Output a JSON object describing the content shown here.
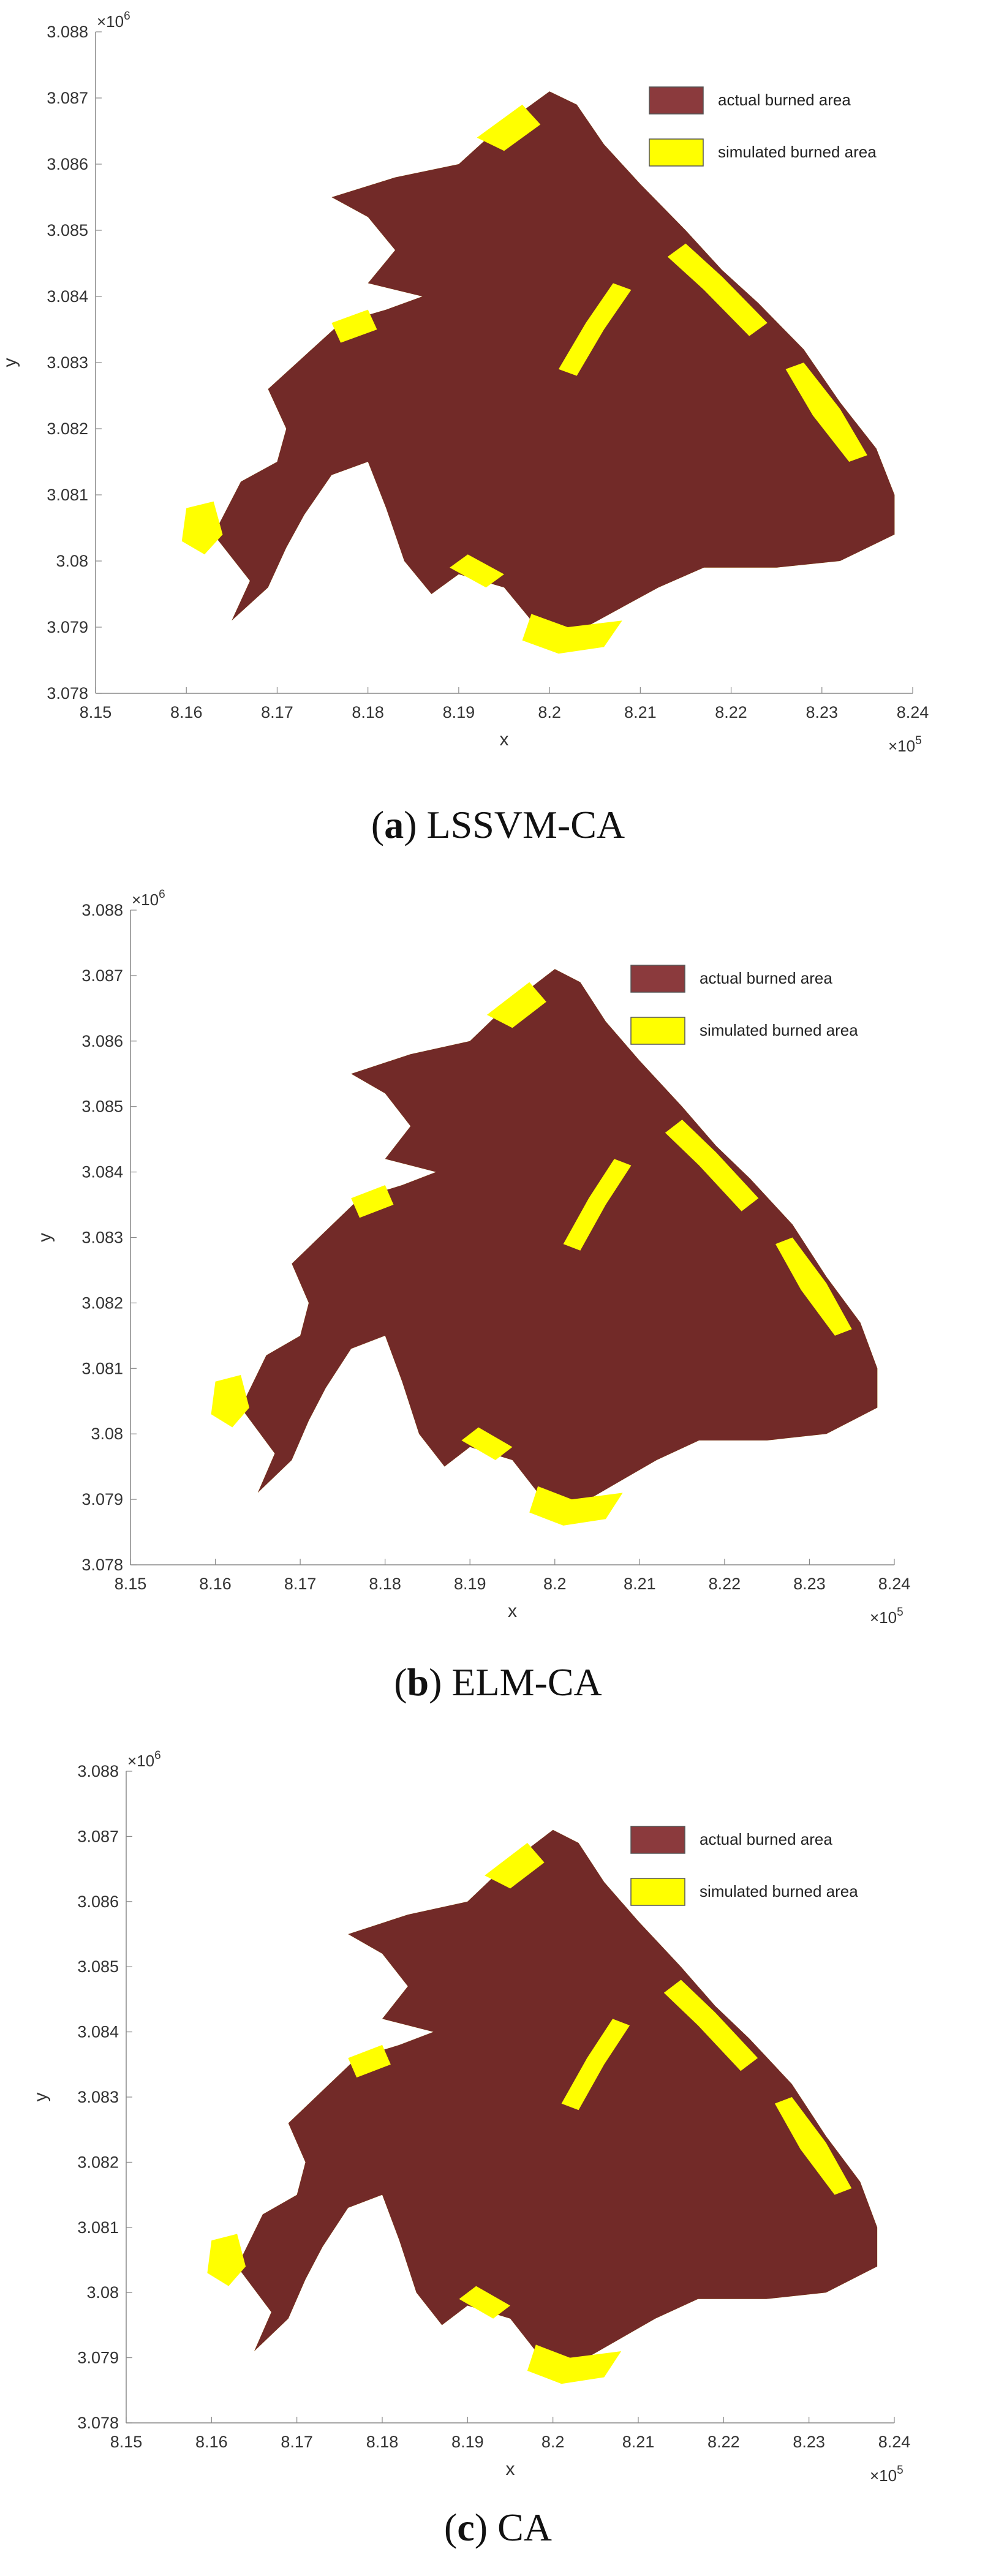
{
  "chart_data": [
    {
      "type": "map",
      "caption_letter": "a",
      "caption_text": "LSSVM-CA",
      "xlabel": "x",
      "ylabel": "y",
      "xlim": [
        815000,
        824000
      ],
      "ylim": [
        3078000,
        3088000
      ],
      "x_ticks": [
        "8.15",
        "8.16",
        "8.17",
        "8.18",
        "8.19",
        "8.2",
        "8.21",
        "8.22",
        "8.23",
        "8.24"
      ],
      "y_ticks": [
        "3.078",
        "3.079",
        "3.08",
        "3.081",
        "3.082",
        "3.083",
        "3.084",
        "3.085",
        "3.086",
        "3.087",
        "3.088"
      ],
      "x_multiplier": {
        "base": "×10",
        "exp": "5"
      },
      "y_multiplier": {
        "base": "×10",
        "exp": "6"
      },
      "legend": [
        {
          "label": "actual burned area",
          "color": "#8b3a3d"
        },
        {
          "label": "simulated burned area",
          "color": "#ffff00"
        }
      ],
      "legend_position": "top-right"
    },
    {
      "type": "map",
      "caption_letter": "b",
      "caption_text": "ELM-CA",
      "xlabel": "x",
      "ylabel": "y",
      "xlim": [
        815000,
        824000
      ],
      "ylim": [
        3078000,
        3088000
      ],
      "x_ticks": [
        "8.15",
        "8.16",
        "8.17",
        "8.18",
        "8.19",
        "8.2",
        "8.21",
        "8.22",
        "8.23",
        "8.24"
      ],
      "y_ticks": [
        "3.078",
        "3.079",
        "3.08",
        "3.081",
        "3.082",
        "3.083",
        "3.084",
        "3.085",
        "3.086",
        "3.087",
        "3.088"
      ],
      "x_multiplier": {
        "base": "×10",
        "exp": "5"
      },
      "y_multiplier": {
        "base": "×10",
        "exp": "6"
      },
      "legend": [
        {
          "label": "actual burned area",
          "color": "#8b3a3d"
        },
        {
          "label": "simulated burned area",
          "color": "#ffff00"
        }
      ],
      "legend_position": "top-right"
    },
    {
      "type": "map",
      "caption_letter": "c",
      "caption_text": "CA",
      "xlabel": "x",
      "ylabel": "y",
      "xlim": [
        815000,
        824000
      ],
      "ylim": [
        3078000,
        3088000
      ],
      "x_ticks": [
        "8.15",
        "8.16",
        "8.17",
        "8.18",
        "8.19",
        "8.2",
        "8.21",
        "8.22",
        "8.23",
        "8.24"
      ],
      "y_ticks": [
        "3.078",
        "3.079",
        "3.08",
        "3.081",
        "3.082",
        "3.083",
        "3.084",
        "3.085",
        "3.086",
        "3.087",
        "3.088"
      ],
      "x_multiplier": {
        "base": "×10",
        "exp": "5"
      },
      "y_multiplier": {
        "base": "×10",
        "exp": "6"
      },
      "legend": [
        {
          "label": "actual burned area",
          "color": "#8b3a3d"
        },
        {
          "label": "simulated burned area",
          "color": "#ffff00"
        }
      ],
      "legend_position": "top-right"
    }
  ],
  "colors": {
    "actual_fill": "#722a28",
    "simulated_fill": "#ffff00"
  }
}
